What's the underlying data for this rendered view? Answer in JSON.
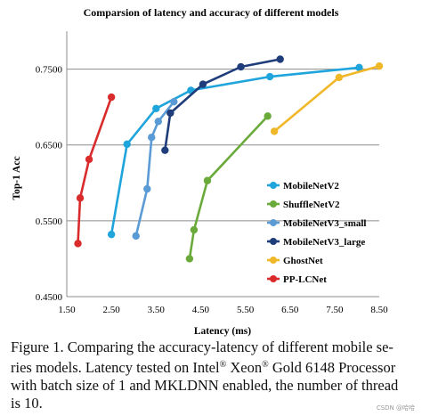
{
  "chart_data": {
    "type": "line",
    "title": "Comparsion of latency and accuracy of different models",
    "xlabel": "Latency (ms)",
    "ylabel": "Top-1 Acc",
    "xlim": [
      1.5,
      8.5
    ],
    "ylim": [
      0.45,
      0.8
    ],
    "x_ticks": [
      "1.50",
      "2.50",
      "3.50",
      "4.50",
      "5.50",
      "6.50",
      "7.50",
      "8.50"
    ],
    "y_ticks": [
      "0.4500",
      "0.5500",
      "0.6500",
      "0.7500"
    ],
    "grid": "horizontal",
    "legend_position": "right",
    "series": [
      {
        "name": "MobileNetV2",
        "color": "#1fa4dc",
        "x": [
          2.5,
          2.85,
          3.5,
          4.28,
          6.05,
          8.05
        ],
        "y": [
          0.532,
          0.651,
          0.698,
          0.722,
          0.74,
          0.752
        ]
      },
      {
        "name": "ShuffleNetV2",
        "color": "#6aaa3a",
        "x": [
          4.25,
          4.35,
          4.65,
          6.0
        ],
        "y": [
          0.5,
          0.538,
          0.603,
          0.688
        ]
      },
      {
        "name": "MobileNetV3_small",
        "color": "#5b9bd5",
        "x": [
          3.05,
          3.3,
          3.4,
          3.55,
          3.9
        ],
        "y": [
          0.53,
          0.592,
          0.66,
          0.681,
          0.707
        ]
      },
      {
        "name": "MobileNetV3_large",
        "color": "#1f3d7a",
        "x": [
          3.7,
          3.82,
          4.55,
          5.4,
          6.28
        ],
        "y": [
          0.643,
          0.692,
          0.73,
          0.753,
          0.763
        ]
      },
      {
        "name": "GhostNet",
        "color": "#f0b828",
        "x": [
          6.15,
          7.6,
          8.5
        ],
        "y": [
          0.668,
          0.739,
          0.754
        ]
      },
      {
        "name": "PP-LCNet",
        "color": "#d92b2b",
        "x": [
          1.75,
          1.8,
          2.0,
          2.5
        ],
        "y": [
          0.52,
          0.58,
          0.631,
          0.713
        ]
      }
    ]
  },
  "caption": {
    "line1": "Figure 1. Comparing the accuracy-latency of different mobile se-",
    "line2_a": "ries models. Latency tested on Intel",
    "reg1": "®",
    "line2_b": " Xeon",
    "reg2": "®",
    "line2_c": " Gold 6148 Processor",
    "line3": "with batch size of 1 and MKLDNN enabled, the number of thread",
    "line4": "is 10."
  },
  "watermark": "CSDN @哈哈"
}
